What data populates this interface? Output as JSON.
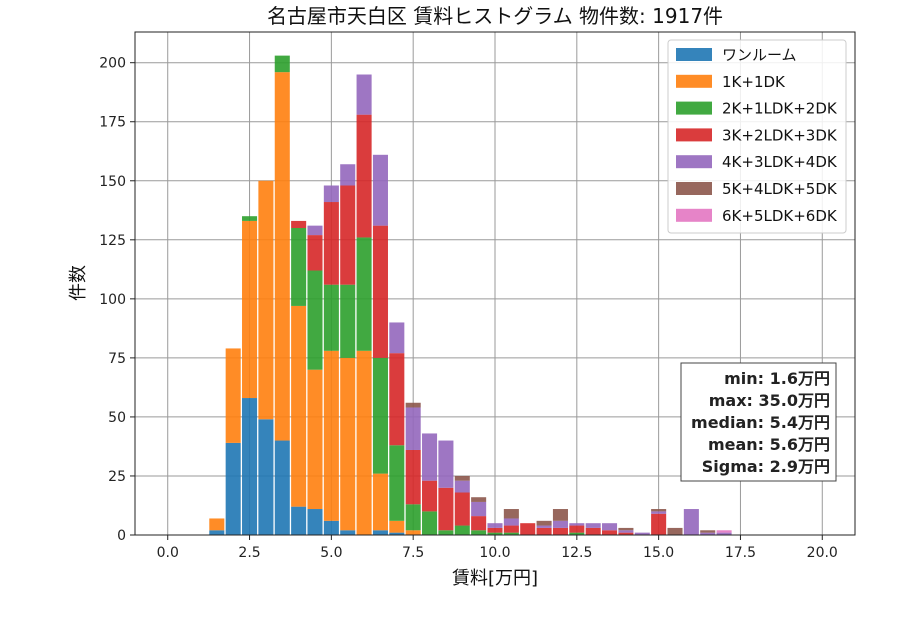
{
  "chart_data": {
    "type": "bar",
    "stacked": true,
    "title": "名古屋市天白区 賃料ヒストグラム 物件数: 1917件",
    "xlabel": "賃料[万円]",
    "ylabel": "件数",
    "xlim": [
      -1.0,
      21.0
    ],
    "ylim": [
      0,
      213
    ],
    "x_ticks": [
      0.0,
      2.5,
      5.0,
      7.5,
      10.0,
      12.5,
      15.0,
      17.5,
      20.0
    ],
    "x_tick_labels": [
      "0.0",
      "2.5",
      "5.0",
      "7.5",
      "10.0",
      "12.5",
      "15.0",
      "17.5",
      "20.0"
    ],
    "y_ticks": [
      0,
      25,
      50,
      75,
      100,
      125,
      150,
      175,
      200
    ],
    "y_tick_labels": [
      "0",
      "25",
      "50",
      "75",
      "100",
      "125",
      "150",
      "175",
      "200"
    ],
    "grid": true,
    "legend_position": "top-right",
    "bin_width": 0.5,
    "bin_centers": [
      1.5,
      2.0,
      2.5,
      3.0,
      3.5,
      4.0,
      4.5,
      5.0,
      5.5,
      6.0,
      6.5,
      7.0,
      7.5,
      8.0,
      8.5,
      9.0,
      9.5,
      10.0,
      10.5,
      11.0,
      11.5,
      12.0,
      12.5,
      13.0,
      13.5,
      14.0,
      14.5,
      15.0,
      15.5,
      16.0,
      16.5,
      17.0
    ],
    "series": [
      {
        "name": "ワンルーム",
        "color": "#1f77b4",
        "values": [
          2,
          39,
          58,
          49,
          40,
          12,
          11,
          6,
          2,
          0,
          2,
          1,
          0,
          0,
          0,
          0,
          0,
          0,
          0,
          0,
          0,
          0,
          0,
          0,
          0,
          0,
          0,
          0,
          0,
          0,
          0,
          0
        ]
      },
      {
        "name": "1K+1DK",
        "color": "#ff7f0e",
        "values": [
          5,
          40,
          75,
          101,
          156,
          85,
          59,
          72,
          73,
          78,
          24,
          5,
          2,
          0,
          0,
          0,
          0,
          0,
          0,
          0,
          0,
          0,
          0,
          0,
          0,
          0,
          0,
          0,
          0,
          0,
          0,
          0
        ]
      },
      {
        "name": "2K+1LDK+2DK",
        "color": "#2ca02c",
        "values": [
          0,
          0,
          2,
          0,
          7,
          33,
          42,
          28,
          31,
          48,
          49,
          32,
          11,
          10,
          2,
          4,
          2,
          1,
          1,
          0,
          0,
          0,
          1,
          0,
          0,
          0,
          0,
          0,
          0,
          0,
          0,
          0
        ]
      },
      {
        "name": "3K+2LDK+3DK",
        "color": "#d62728",
        "values": [
          0,
          0,
          0,
          0,
          0,
          3,
          15,
          35,
          42,
          52,
          56,
          39,
          23,
          13,
          18,
          14,
          6,
          2,
          3,
          5,
          3,
          3,
          3,
          3,
          2,
          1,
          0,
          9,
          0,
          0,
          0,
          0
        ]
      },
      {
        "name": "4K+3LDK+4DK",
        "color": "#9467bd",
        "values": [
          0,
          0,
          0,
          0,
          0,
          0,
          4,
          7,
          9,
          17,
          30,
          13,
          18,
          20,
          20,
          5,
          6,
          2,
          3,
          0,
          1,
          3,
          1,
          2,
          3,
          1,
          1,
          1,
          0,
          11,
          1,
          1
        ]
      },
      {
        "name": "5K+4LDK+5DK",
        "color": "#8c564b",
        "values": [
          0,
          0,
          0,
          0,
          0,
          0,
          0,
          0,
          0,
          0,
          0,
          0,
          2,
          0,
          0,
          2,
          2,
          0,
          4,
          0,
          2,
          5,
          0,
          0,
          0,
          1,
          0,
          1,
          3,
          0,
          1,
          0
        ]
      },
      {
        "name": "6K+5LDK+6DK",
        "color": "#e377c2",
        "values": [
          0,
          0,
          0,
          0,
          0,
          0,
          0,
          0,
          0,
          0,
          0,
          0,
          0,
          0,
          0,
          0,
          0,
          0,
          0,
          0,
          0,
          0,
          0,
          0,
          0,
          0,
          0,
          0,
          0,
          0,
          0,
          1
        ]
      }
    ],
    "stats": [
      "min: 1.6万円",
      "max: 35.0万円",
      "median: 5.4万円",
      "mean: 5.6万円",
      "Sigma: 2.9万円"
    ]
  }
}
